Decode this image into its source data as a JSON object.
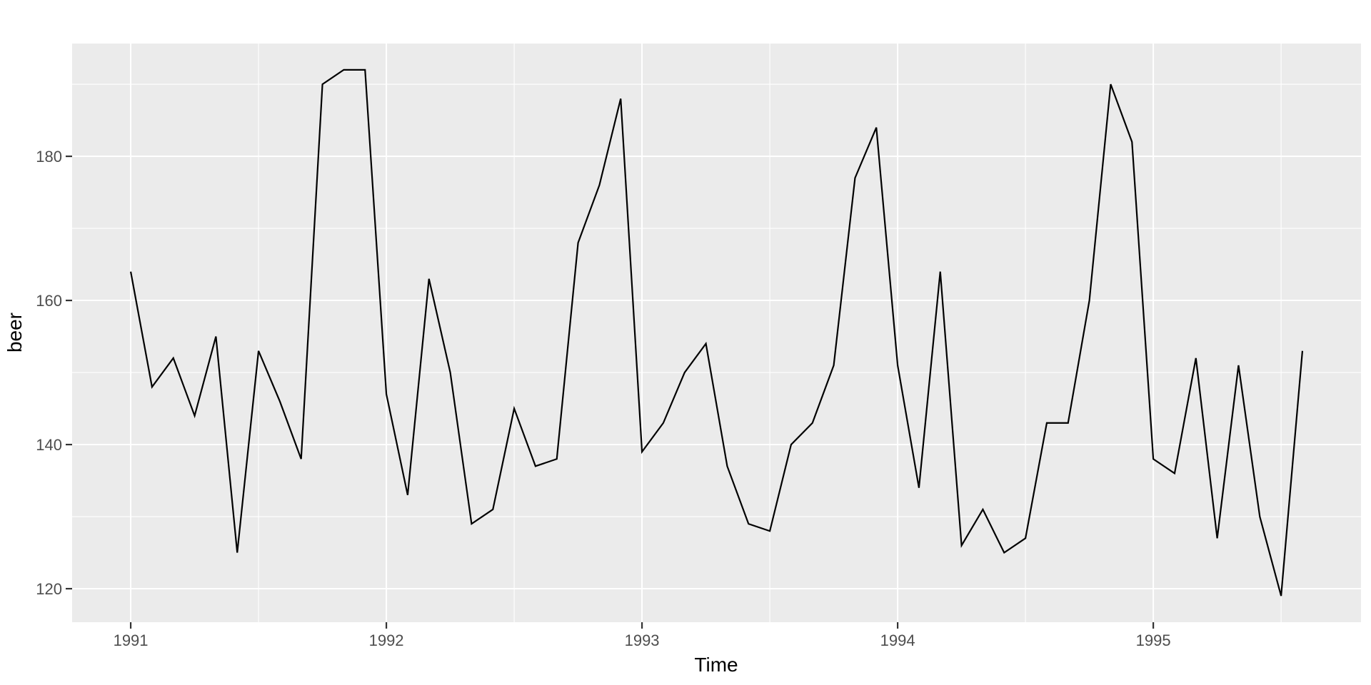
{
  "figure": {
    "background": "#FFFFFF"
  },
  "chart_data": {
    "type": "line",
    "title": "",
    "xlabel": "Time",
    "ylabel": "beer",
    "legend": "none",
    "grid": true,
    "panel_background": "#EBEBEB",
    "grid_color": "#FFFFFF",
    "tick_color": "#333333",
    "axis_text_color": "#4D4D4D",
    "axis_title_color": "#000000",
    "line_color": "#000000",
    "xlim": [
      1990.7708,
      1995.8125
    ],
    "ylim": [
      115.35,
      195.65
    ],
    "x_ticks": [
      1991,
      1992,
      1993,
      1994,
      1995
    ],
    "x_tick_labels": [
      "1991",
      "1992",
      "1993",
      "1994",
      "1995"
    ],
    "x_minor_ticks": [
      1991.5,
      1992.5,
      1993.5,
      1994.5,
      1995.5
    ],
    "y_ticks": [
      120,
      140,
      160,
      180
    ],
    "y_tick_labels": [
      "120",
      "140",
      "160",
      "180"
    ],
    "y_minor_ticks": [
      130,
      150,
      170,
      190
    ],
    "series": [
      {
        "name": "beer",
        "color": "#000000",
        "x_start": 1991.0,
        "frequency": 12,
        "values": [
          164,
          148,
          152,
          144,
          155,
          125,
          153,
          146,
          138,
          190,
          192,
          192,
          147,
          133,
          163,
          150,
          129,
          131,
          145,
          137,
          138,
          168,
          176,
          188,
          139,
          143,
          150,
          154,
          137,
          129,
          128,
          140,
          143,
          151,
          177,
          184,
          151,
          134,
          164,
          126,
          131,
          125,
          127,
          143,
          143,
          160,
          190,
          182,
          138,
          136,
          152,
          127,
          151,
          130,
          119,
          153
        ]
      }
    ]
  }
}
